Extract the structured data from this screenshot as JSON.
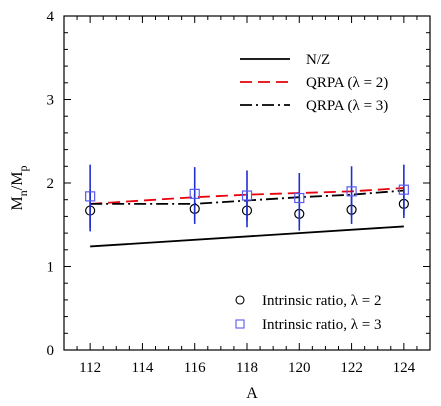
{
  "chart_data": {
    "type": "line",
    "xlabel": "A",
    "ylabel": {
      "main": "M",
      "sub1": "n",
      "sep": "/M",
      "sub2": "p"
    },
    "xlim": [
      111,
      125
    ],
    "ylim": [
      0,
      4
    ],
    "xticks": [
      112,
      114,
      116,
      118,
      120,
      122,
      124
    ],
    "yticks": [
      0,
      1,
      2,
      3,
      4
    ],
    "grid": false,
    "legend_position": "top-right and bottom-right",
    "series": [
      {
        "name": "N/Z",
        "kind": "line",
        "style": "solid",
        "color": "#000000",
        "x": [
          112,
          124
        ],
        "y": [
          1.24,
          1.48
        ]
      },
      {
        "name": "QRPA (λ = 2)",
        "kind": "line",
        "style": "dashed",
        "color": "#e8000b",
        "x": [
          112,
          116,
          118,
          120,
          122,
          124
        ],
        "y": [
          1.75,
          1.83,
          1.86,
          1.88,
          1.9,
          1.94
        ]
      },
      {
        "name": "QRPA (λ = 3)",
        "kind": "line",
        "style": "dashdot",
        "color": "#000000",
        "x": [
          112,
          116,
          118,
          120,
          122,
          124
        ],
        "y": [
          1.75,
          1.75,
          1.79,
          1.83,
          1.86,
          1.91
        ]
      },
      {
        "name": "Intrinsic ratio, λ = 2",
        "kind": "scatter",
        "marker": "circle",
        "color": "#000000",
        "errorbar_color": "#1f2fd0",
        "x": [
          112,
          116,
          118,
          120,
          122,
          124
        ],
        "y": [
          1.67,
          1.69,
          1.67,
          1.63,
          1.68,
          1.75
        ],
        "yerr": [
          0.25,
          0.18,
          0.2,
          0.2,
          0.17,
          0.17
        ]
      },
      {
        "name": "Intrinsic ratio, λ = 3",
        "kind": "scatter",
        "marker": "square",
        "color": "#5a5af0",
        "errorbar_color": "#1f2fd0",
        "x": [
          112,
          116,
          118,
          120,
          122,
          124
        ],
        "y": [
          1.84,
          1.87,
          1.85,
          1.82,
          1.9,
          1.92
        ],
        "yerr": [
          0.38,
          0.32,
          0.3,
          0.3,
          0.3,
          0.3
        ]
      }
    ],
    "legend_top": [
      "N/Z",
      "QRPA (λ = 2)",
      "QRPA (λ = 3)"
    ],
    "legend_bottom": [
      "Intrinsic ratio, λ = 2",
      "Intrinsic ratio, λ = 3"
    ]
  }
}
